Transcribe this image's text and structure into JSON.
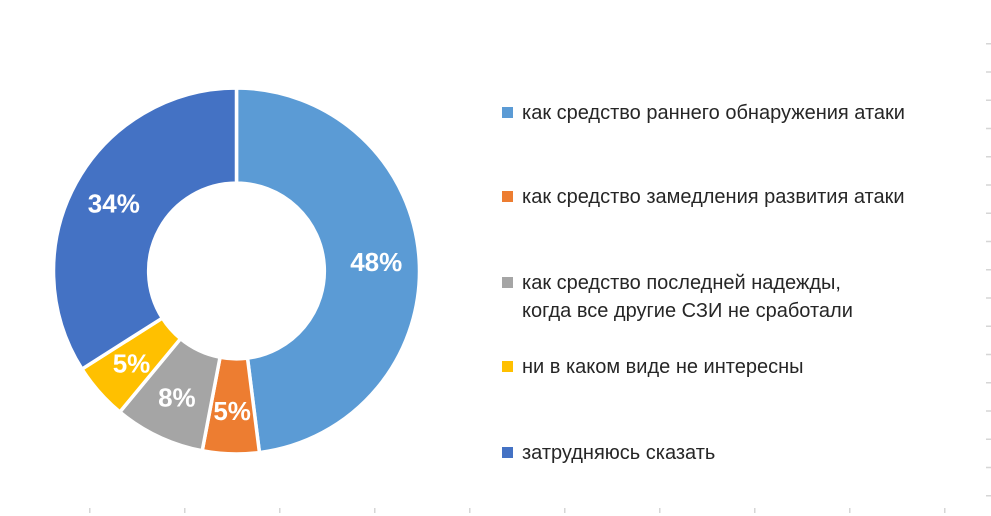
{
  "chart_data": {
    "type": "pie",
    "subtype": "donut",
    "title": "",
    "categories": [
      "как средство раннего обнаружения атаки",
      "как средство замедления развития атаки",
      "как средство последней надежды,\nкогда все другие СЗИ не сработали",
      "ни в каком виде не интересны",
      "затрудняюсь сказать"
    ],
    "values": [
      48,
      5,
      8,
      5,
      34
    ],
    "data_labels": [
      "48%",
      "5%",
      "8%",
      "5%",
      "34%"
    ],
    "colors": [
      "#5b9bd5",
      "#ed7d31",
      "#a5a5a5",
      "#ffc000",
      "#4472c4"
    ],
    "data_label_color": "#ffffff",
    "legend_position": "right",
    "legend_text_color": "#262626",
    "start_angle_deg": 0,
    "direction": "clockwise",
    "donut_hole_ratio": 0.48,
    "background": "#ffffff",
    "gridline_tick_color": "#d6d6d6"
  }
}
